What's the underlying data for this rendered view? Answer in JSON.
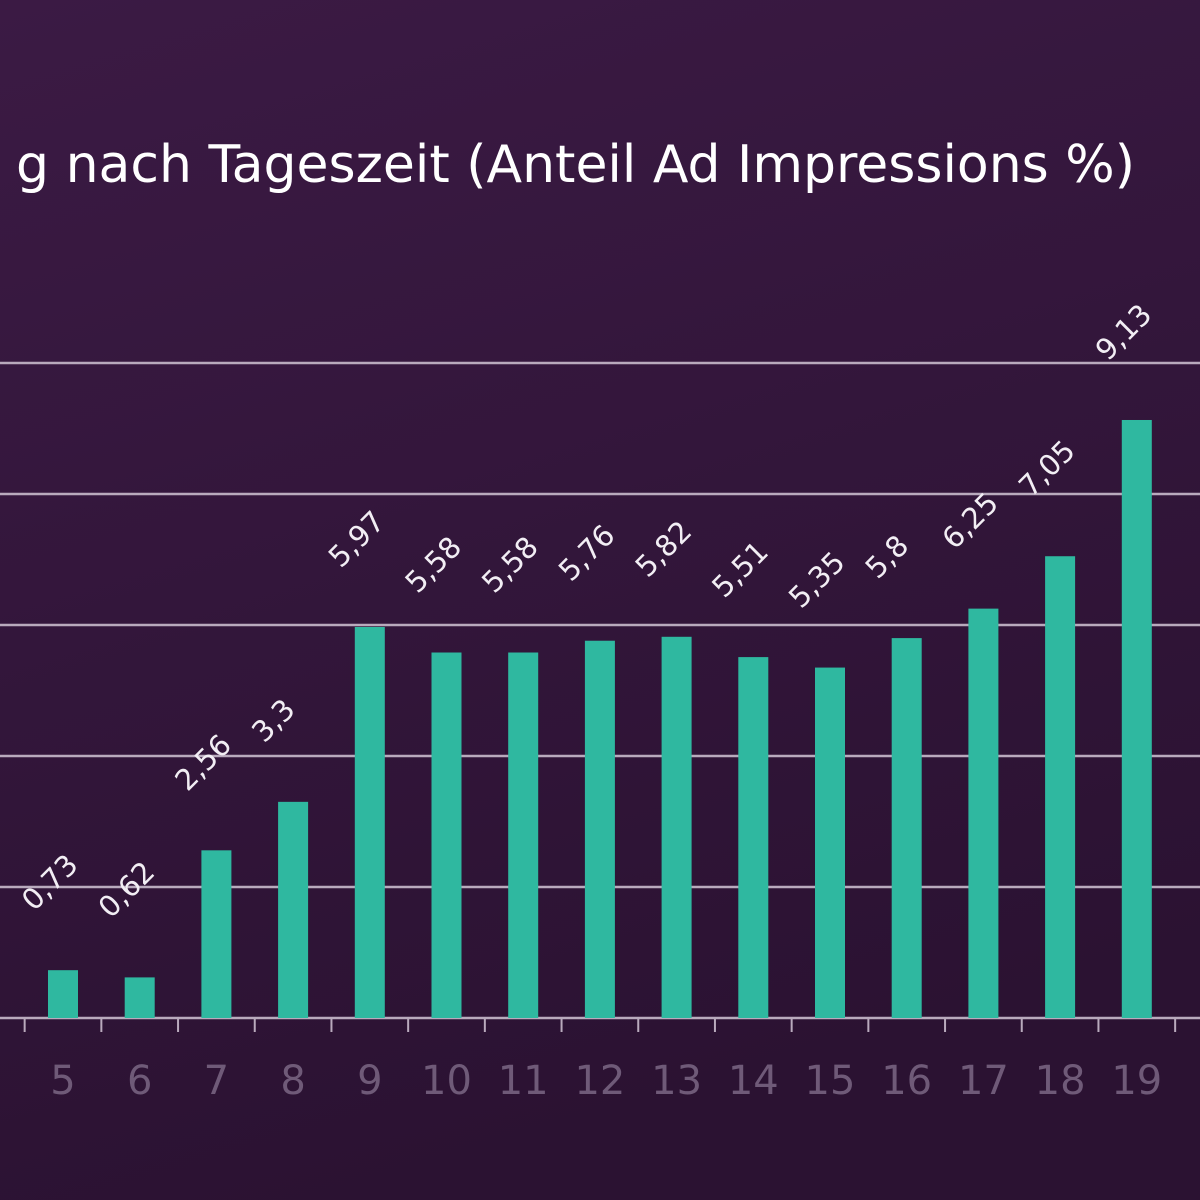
{
  "chart_data": {
    "type": "bar",
    "title": "g nach Tageszeit (Anteil Ad Impressions %)",
    "categories": [
      "5",
      "6",
      "7",
      "8",
      "9",
      "10",
      "11",
      "12",
      "13",
      "14",
      "15",
      "16",
      "17",
      "18",
      "19"
    ],
    "values": [
      0.73,
      0.62,
      2.56,
      3.3,
      5.97,
      5.58,
      5.58,
      5.76,
      5.82,
      5.51,
      5.35,
      5.8,
      6.25,
      7.05,
      9.13
    ],
    "value_labels": [
      "0,73",
      "0,62",
      "2,56",
      "3,3",
      "5,97",
      "5,58",
      "5,58",
      "5,76",
      "5,82",
      "5,51",
      "5,35",
      "5,8",
      "6,25",
      "7,05",
      "9,13"
    ],
    "color": "#2fb8a0",
    "ylim": [
      0,
      10
    ],
    "yticks": [
      0,
      2,
      4,
      6,
      8,
      10
    ],
    "grid": true
  }
}
